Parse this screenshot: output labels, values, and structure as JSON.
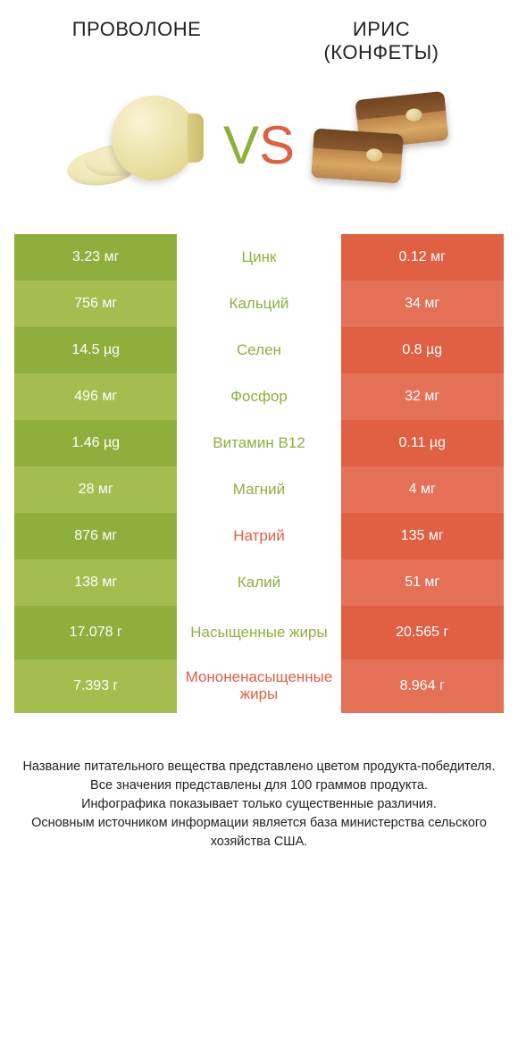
{
  "titles": {
    "left": "ПРОВОЛОНЕ",
    "right_line1": "ИРИС",
    "right_line2": "(КОНФЕТЫ)"
  },
  "vs": {
    "v": "V",
    "s": "S"
  },
  "colors": {
    "green_a": "#8faf3c",
    "green_b": "#a4bd4f",
    "orange_a": "#df6043",
    "orange_b": "#e47055",
    "text_green": "#8faf3c",
    "text_orange": "#df6043",
    "white": "#ffffff"
  },
  "rows": [
    {
      "left": "3.23 мг",
      "label": "Цинк",
      "right": "0.12 мг",
      "winner": "left",
      "tall": false
    },
    {
      "left": "756 мг",
      "label": "Кальций",
      "right": "34 мг",
      "winner": "left",
      "tall": false
    },
    {
      "left": "14.5 µg",
      "label": "Селен",
      "right": "0.8 µg",
      "winner": "left",
      "tall": false
    },
    {
      "left": "496 мг",
      "label": "Фосфор",
      "right": "32 мг",
      "winner": "left",
      "tall": false
    },
    {
      "left": "1.46 µg",
      "label": "Витамин B12",
      "right": "0.11 µg",
      "winner": "left",
      "tall": false
    },
    {
      "left": "28 мг",
      "label": "Магний",
      "right": "4 мг",
      "winner": "left",
      "tall": false
    },
    {
      "left": "876 мг",
      "label": "Натрий",
      "right": "135 мг",
      "winner": "right",
      "tall": false
    },
    {
      "left": "138 мг",
      "label": "Калий",
      "right": "51 мг",
      "winner": "left",
      "tall": false
    },
    {
      "left": "17.078 г",
      "label": "Насыщенные жиры",
      "right": "20.565 г",
      "winner": "left",
      "tall": true
    },
    {
      "left": "7.393 г",
      "label": "Мононенасыщенные жиры",
      "right": "8.964 г",
      "winner": "right",
      "tall": true
    }
  ],
  "footer": [
    "Название питательного вещества представлено цветом продукта-победителя.",
    "Все значения представлены для 100 граммов продукта.",
    "Инфографика показывает только существенные различия.",
    "Основным источником информации является база министерства сельского хозяйства США."
  ]
}
